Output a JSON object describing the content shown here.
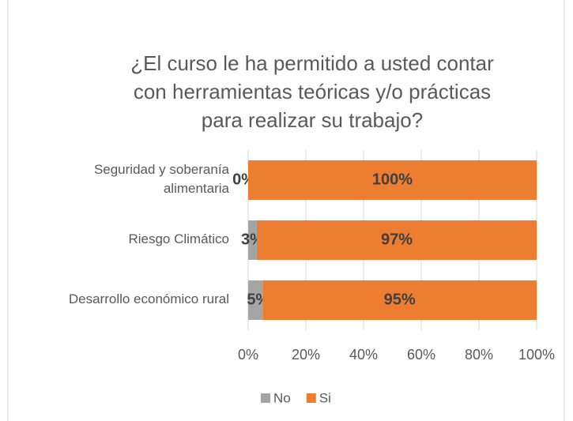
{
  "chart_data": {
    "type": "stacked_bar_horizontal",
    "title": "¿El curso le ha permitido a usted contar con herramientas teóricas y/o prácticas para realizar su trabajo?",
    "categories": [
      "Seguridad y soberanía alimentaria",
      "Riesgo Climático",
      "Desarrollo económico rural"
    ],
    "series": [
      {
        "name": "No",
        "color": "#a5a5a5",
        "values": [
          0,
          3,
          5
        ],
        "value_labels": [
          "0%",
          "3%",
          "5%"
        ]
      },
      {
        "name": "Si",
        "color": "#ed7d31",
        "values": [
          100,
          97,
          95
        ],
        "value_labels": [
          "100%",
          "97%",
          "95%"
        ]
      }
    ],
    "xlim": [
      0,
      100
    ],
    "xticks": [
      {
        "value": 0,
        "label": "0%"
      },
      {
        "value": 20,
        "label": "20%"
      },
      {
        "value": 40,
        "label": "40%"
      },
      {
        "value": 60,
        "label": "60%"
      },
      {
        "value": 80,
        "label": "80%"
      },
      {
        "value": 100,
        "label": "100%"
      }
    ],
    "legend": "bottom"
  }
}
